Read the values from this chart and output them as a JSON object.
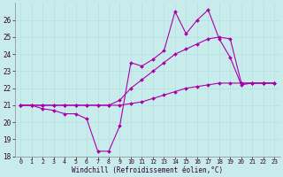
{
  "xlabel": "Windchill (Refroidissement éolien,°C)",
  "bg_color": "#c8ecec",
  "line_color": "#aa00aa",
  "grid_color": "#b8e0e0",
  "xlim": [
    -0.5,
    23.5
  ],
  "ylim": [
    18,
    27
  ],
  "yticks": [
    18,
    19,
    20,
    21,
    22,
    23,
    24,
    25,
    26
  ],
  "xticks": [
    0,
    1,
    2,
    3,
    4,
    5,
    6,
    7,
    8,
    9,
    10,
    11,
    12,
    13,
    14,
    15,
    16,
    17,
    18,
    19,
    20,
    21,
    22,
    23
  ],
  "line1_x": [
    0,
    1,
    2,
    3,
    4,
    5,
    6,
    7,
    8,
    9,
    10,
    11,
    12,
    13,
    14,
    15,
    16,
    17,
    18,
    19,
    20,
    21,
    22,
    23
  ],
  "line1_y": [
    21.0,
    21.0,
    20.8,
    20.7,
    20.5,
    20.5,
    20.2,
    18.3,
    18.3,
    19.8,
    23.5,
    23.3,
    23.7,
    24.2,
    26.5,
    25.2,
    26.0,
    26.6,
    24.9,
    23.8,
    22.2,
    22.3,
    22.3,
    22.3
  ],
  "line2_x": [
    0,
    1,
    2,
    3,
    4,
    5,
    6,
    7,
    8,
    9,
    10,
    11,
    12,
    13,
    14,
    15,
    16,
    17,
    18,
    19,
    20,
    21,
    22,
    23
  ],
  "line2_y": [
    21.0,
    21.0,
    21.0,
    21.0,
    21.0,
    21.0,
    21.0,
    21.0,
    21.0,
    21.3,
    22.0,
    22.5,
    23.0,
    23.5,
    24.0,
    24.3,
    24.6,
    24.9,
    25.0,
    24.9,
    22.3,
    22.3,
    22.3,
    22.3
  ],
  "line3_x": [
    0,
    1,
    2,
    3,
    4,
    5,
    6,
    7,
    8,
    9,
    10,
    11,
    12,
    13,
    14,
    15,
    16,
    17,
    18,
    19,
    20,
    21,
    22,
    23
  ],
  "line3_y": [
    21.0,
    21.0,
    21.0,
    21.0,
    21.0,
    21.0,
    21.0,
    21.0,
    21.0,
    21.0,
    21.1,
    21.2,
    21.4,
    21.6,
    21.8,
    22.0,
    22.1,
    22.2,
    22.3,
    22.3,
    22.3,
    22.3,
    22.3,
    22.3
  ],
  "marker": "D",
  "markersize": 2.0,
  "linewidth": 0.8,
  "tick_fontsize": 5.0,
  "xlabel_fontsize": 5.5
}
